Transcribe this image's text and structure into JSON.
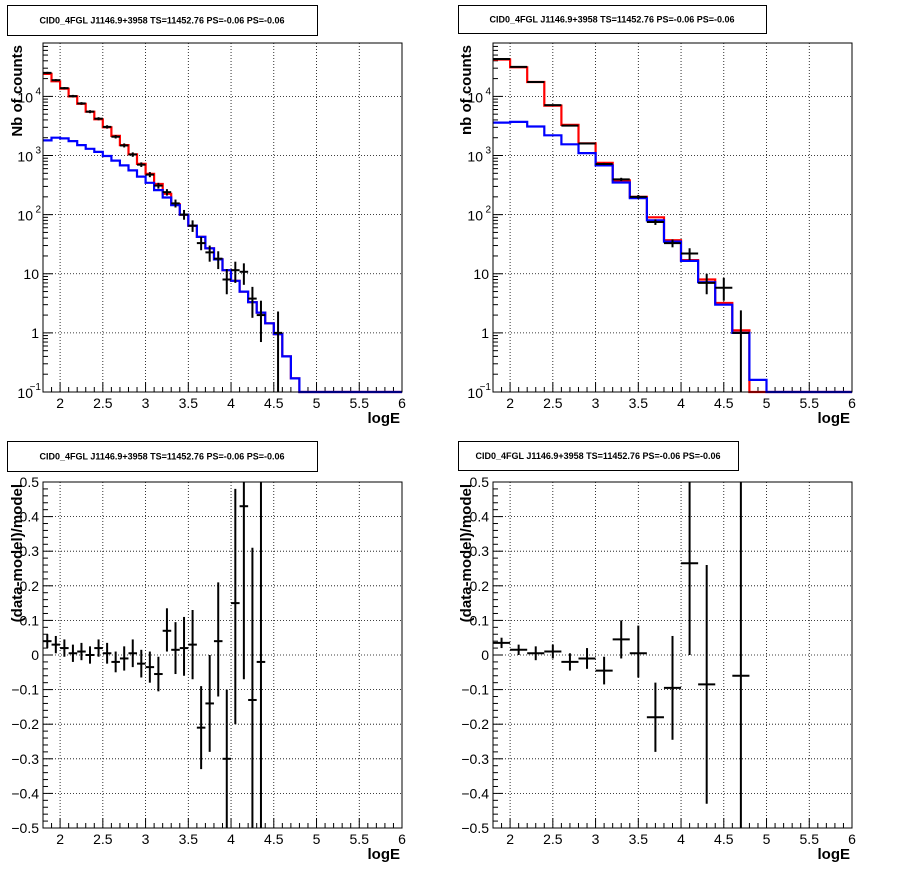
{
  "colors": {
    "model_total": "#ff0000",
    "model_source": "#0000ff",
    "data": "#000000",
    "grid": "#000000"
  },
  "chart_data": [
    {
      "type": "step-histogram",
      "panel": "top-left",
      "title": "CID0_4FGL J1146.9+3958 TS=11452.76 PS=-0.06 PS=-0.06",
      "xlabel": "logE",
      "ylabel": "Nb of counts",
      "xlim": [
        1.8,
        6.0
      ],
      "ylim": [
        0.1,
        80000
      ],
      "yscale": "log",
      "grid": true,
      "xticks": [
        {
          "v": 2,
          "label": "2"
        },
        {
          "v": 2.5,
          "label": "2.5"
        },
        {
          "v": 3,
          "label": "3"
        },
        {
          "v": 3.5,
          "label": "3.5"
        },
        {
          "v": 4,
          "label": "4"
        },
        {
          "v": 4.5,
          "label": "4.5"
        },
        {
          "v": 5,
          "label": "5"
        },
        {
          "v": 5.5,
          "label": "5.5"
        },
        {
          "v": 6,
          "label": "6"
        }
      ],
      "yticks": [
        {
          "v": 0.1,
          "label": "10",
          "sup": "−1"
        },
        {
          "v": 1,
          "label": "1"
        },
        {
          "v": 10,
          "label": "10"
        },
        {
          "v": 100,
          "label": "10",
          "sup": "2"
        },
        {
          "v": 1000,
          "label": "10",
          "sup": "3"
        },
        {
          "v": 10000,
          "label": "10",
          "sup": "4"
        }
      ],
      "bin_edges": [
        1.8,
        1.9,
        2.0,
        2.1,
        2.2,
        2.3,
        2.4,
        2.5,
        2.6,
        2.7,
        2.8,
        2.9,
        3.0,
        3.1,
        3.2,
        3.3,
        3.4,
        3.5,
        3.6,
        3.7,
        3.8,
        3.9,
        4.0,
        4.1,
        4.2,
        4.3,
        4.4,
        4.5,
        4.6,
        4.7,
        4.8,
        4.9,
        5.0,
        5.1,
        5.2,
        5.3,
        5.4,
        5.5,
        5.6,
        5.7,
        5.8,
        5.9,
        6.0
      ],
      "series": [
        {
          "kind": "model_total",
          "values": [
            24000,
            18000,
            13500,
            10000,
            7500,
            5500,
            4100,
            3000,
            2150,
            1500,
            1050,
            720,
            490,
            330,
            225,
            150,
            100,
            65,
            42,
            27,
            17.5,
            11.5,
            7.6,
            5.0,
            3.3,
            2.2,
            1.45,
            0.95,
            0.4,
            0.17,
            0.1,
            0.1,
            0.1,
            0.1,
            0.1,
            0.1,
            0.1,
            0.1,
            0.1,
            0.1,
            0.1,
            0.1
          ]
        },
        {
          "kind": "model_source",
          "values": [
            1800,
            2000,
            1950,
            1750,
            1500,
            1300,
            1150,
            980,
            820,
            680,
            560,
            440,
            345,
            260,
            195,
            145,
            100,
            65,
            42,
            27,
            17.5,
            11.5,
            7.6,
            5.0,
            3.3,
            2.2,
            1.45,
            0.95,
            0.4,
            0.17,
            0.1,
            0.1,
            0.1,
            0.1,
            0.1,
            0.1,
            0.1,
            0.1,
            0.1,
            0.1,
            0.1,
            0.1
          ]
        }
      ],
      "data_points": [
        {
          "x": 1.85,
          "y": 25000,
          "ylo": 24000,
          "yhi": 26000
        },
        {
          "x": 1.95,
          "y": 18800,
          "ylo": 18000,
          "yhi": 19600
        },
        {
          "x": 2.05,
          "y": 13800,
          "ylo": 13200,
          "yhi": 14400
        },
        {
          "x": 2.15,
          "y": 10100,
          "ylo": 9600,
          "yhi": 10600
        },
        {
          "x": 2.25,
          "y": 7600,
          "ylo": 7200,
          "yhi": 8000
        },
        {
          "x": 2.35,
          "y": 5520,
          "ylo": 5200,
          "yhi": 5850
        },
        {
          "x": 2.45,
          "y": 4200,
          "ylo": 3950,
          "yhi": 4450
        },
        {
          "x": 2.55,
          "y": 3050,
          "ylo": 2850,
          "yhi": 3250
        },
        {
          "x": 2.65,
          "y": 2080,
          "ylo": 1940,
          "yhi": 2220
        },
        {
          "x": 2.75,
          "y": 1480,
          "ylo": 1370,
          "yhi": 1600
        },
        {
          "x": 2.85,
          "y": 1040,
          "ylo": 950,
          "yhi": 1130
        },
        {
          "x": 2.95,
          "y": 700,
          "ylo": 640,
          "yhi": 765
        },
        {
          "x": 3.05,
          "y": 475,
          "ylo": 430,
          "yhi": 525
        },
        {
          "x": 3.15,
          "y": 310,
          "ylo": 275,
          "yhi": 345
        },
        {
          "x": 3.25,
          "y": 240,
          "ylo": 210,
          "yhi": 270
        },
        {
          "x": 3.35,
          "y": 155,
          "ylo": 132,
          "yhi": 180
        },
        {
          "x": 3.45,
          "y": 100,
          "ylo": 82,
          "yhi": 120
        },
        {
          "x": 3.55,
          "y": 65,
          "ylo": 51,
          "yhi": 80
        },
        {
          "x": 3.65,
          "y": 33,
          "ylo": 25,
          "yhi": 42
        },
        {
          "x": 3.75,
          "y": 23,
          "ylo": 16,
          "yhi": 30
        },
        {
          "x": 3.85,
          "y": 18,
          "ylo": 12,
          "yhi": 24
        },
        {
          "x": 3.95,
          "y": 8,
          "ylo": 4.5,
          "yhi": 12
        },
        {
          "x": 4.05,
          "y": 11.5,
          "ylo": 7,
          "yhi": 16
        },
        {
          "x": 4.15,
          "y": 10.8,
          "ylo": 6.5,
          "yhi": 15
        },
        {
          "x": 4.25,
          "y": 3.8,
          "ylo": 1.8,
          "yhi": 6
        },
        {
          "x": 4.35,
          "y": 2.0,
          "ylo": 0.7,
          "yhi": 3.5
        },
        {
          "x": 4.55,
          "y": 1.0,
          "ylo": 0.1,
          "yhi": 2.3
        }
      ]
    },
    {
      "type": "step-histogram",
      "panel": "top-right",
      "title": "CID0_4FGL J1146.9+3958 TS=11452.76 PS=-0.06 PS=-0.06",
      "xlabel": "logE",
      "ylabel": "nb of counts",
      "xlim": [
        1.8,
        6.0
      ],
      "ylim": [
        0.1,
        80000
      ],
      "yscale": "log",
      "grid": true,
      "xticks": [
        {
          "v": 2,
          "label": "2"
        },
        {
          "v": 2.5,
          "label": "2.5"
        },
        {
          "v": 3,
          "label": "3"
        },
        {
          "v": 3.5,
          "label": "3.5"
        },
        {
          "v": 4,
          "label": "4"
        },
        {
          "v": 4.5,
          "label": "4.5"
        },
        {
          "v": 5,
          "label": "5"
        },
        {
          "v": 5.5,
          "label": "5.5"
        },
        {
          "v": 6,
          "label": "6"
        }
      ],
      "yticks": [
        {
          "v": 0.1,
          "label": "10",
          "sup": "−1"
        },
        {
          "v": 1,
          "label": "1"
        },
        {
          "v": 10,
          "label": "10"
        },
        {
          "v": 100,
          "label": "10",
          "sup": "2"
        },
        {
          "v": 1000,
          "label": "10",
          "sup": "3"
        },
        {
          "v": 10000,
          "label": "10",
          "sup": "4"
        }
      ],
      "bin_edges": [
        1.8,
        2.0,
        2.2,
        2.4,
        2.6,
        2.8,
        3.0,
        3.2,
        3.4,
        3.6,
        3.8,
        4.0,
        4.2,
        4.4,
        4.6,
        4.8,
        5.0,
        5.2,
        5.4,
        5.6,
        5.8,
        6.0
      ],
      "series": [
        {
          "kind": "model_total",
          "values": [
            42000,
            31000,
            17500,
            7000,
            3300,
            1600,
            750,
            380,
            200,
            90,
            37,
            17,
            8,
            3.2,
            1.1,
            0.1,
            0.1,
            0.1,
            0.1,
            0.1,
            0.1
          ]
        },
        {
          "kind": "model_source",
          "values": [
            3600,
            3700,
            3100,
            2200,
            1550,
            1100,
            680,
            350,
            190,
            80,
            35,
            16.5,
            7.2,
            3.0,
            1.0,
            0.16,
            0.1,
            0.1,
            0.1,
            0.1,
            0.1
          ]
        }
      ],
      "data_points": [
        {
          "x": 1.9,
          "y": 43000,
          "ylo": 42000,
          "yhi": 44000
        },
        {
          "x": 2.1,
          "y": 31500,
          "ylo": 31000,
          "yhi": 32000
        },
        {
          "x": 2.3,
          "y": 17500,
          "ylo": 17200,
          "yhi": 17800
        },
        {
          "x": 2.5,
          "y": 7100,
          "ylo": 6950,
          "yhi": 7250
        },
        {
          "x": 2.7,
          "y": 3200,
          "ylo": 3100,
          "yhi": 3300
        },
        {
          "x": 2.9,
          "y": 1600,
          "ylo": 1550,
          "yhi": 1650
        },
        {
          "x": 3.1,
          "y": 720,
          "ylo": 690,
          "yhi": 750
        },
        {
          "x": 3.3,
          "y": 395,
          "ylo": 370,
          "yhi": 420
        },
        {
          "x": 3.5,
          "y": 200,
          "ylo": 185,
          "yhi": 215
        },
        {
          "x": 3.7,
          "y": 75,
          "ylo": 67,
          "yhi": 83
        },
        {
          "x": 3.9,
          "y": 33,
          "ylo": 28,
          "yhi": 38
        },
        {
          "x": 4.1,
          "y": 22,
          "ylo": 17,
          "yhi": 27
        },
        {
          "x": 4.3,
          "y": 7,
          "ylo": 4.5,
          "yhi": 10
        },
        {
          "x": 4.5,
          "y": 5.8,
          "ylo": 3.5,
          "yhi": 8.5
        },
        {
          "x": 4.7,
          "y": 1.0,
          "ylo": 0.1,
          "yhi": 2.4
        }
      ]
    },
    {
      "type": "scatter-errorbars",
      "panel": "bottom-left",
      "title": "CID0_4FGL J1146.9+3958 TS=11452.76 PS=-0.06 PS=-0.06",
      "xlabel": "logE",
      "ylabel": "(data-model)/model",
      "xlim": [
        1.8,
        6.0
      ],
      "ylim": [
        -0.5,
        0.5
      ],
      "yscale": "linear",
      "grid": true,
      "xticks": [
        {
          "v": 2,
          "label": "2"
        },
        {
          "v": 2.5,
          "label": "2.5"
        },
        {
          "v": 3,
          "label": "3"
        },
        {
          "v": 3.5,
          "label": "3.5"
        },
        {
          "v": 4,
          "label": "4"
        },
        {
          "v": 4.5,
          "label": "4.5"
        },
        {
          "v": 5,
          "label": "5"
        },
        {
          "v": 5.5,
          "label": "5.5"
        },
        {
          "v": 6,
          "label": "6"
        }
      ],
      "yticks": [
        {
          "v": -0.5,
          "label": "−0.5"
        },
        {
          "v": -0.4,
          "label": "−0.4"
        },
        {
          "v": -0.3,
          "label": "−0.3"
        },
        {
          "v": -0.2,
          "label": "−0.2"
        },
        {
          "v": -0.1,
          "label": "−0.1"
        },
        {
          "v": 0,
          "label": "0"
        },
        {
          "v": 0.1,
          "label": "0.1"
        },
        {
          "v": 0.2,
          "label": "0.2"
        },
        {
          "v": 0.3,
          "label": "0.3"
        },
        {
          "v": 0.4,
          "label": "0.4"
        },
        {
          "v": 0.5,
          "label": "0.5"
        }
      ],
      "data_points": [
        {
          "x": 1.85,
          "y": 0.04,
          "ylo": 0.02,
          "yhi": 0.06
        },
        {
          "x": 1.95,
          "y": 0.03,
          "ylo": 0.005,
          "yhi": 0.055
        },
        {
          "x": 2.05,
          "y": 0.02,
          "ylo": -0.005,
          "yhi": 0.045
        },
        {
          "x": 2.15,
          "y": 0.005,
          "ylo": -0.02,
          "yhi": 0.03
        },
        {
          "x": 2.25,
          "y": 0.01,
          "ylo": -0.015,
          "yhi": 0.035
        },
        {
          "x": 2.35,
          "y": 0.0,
          "ylo": -0.025,
          "yhi": 0.025
        },
        {
          "x": 2.45,
          "y": 0.02,
          "ylo": -0.005,
          "yhi": 0.045
        },
        {
          "x": 2.55,
          "y": 0.005,
          "ylo": -0.025,
          "yhi": 0.035
        },
        {
          "x": 2.65,
          "y": -0.02,
          "ylo": -0.05,
          "yhi": 0.01
        },
        {
          "x": 2.75,
          "y": -0.01,
          "ylo": -0.045,
          "yhi": 0.025
        },
        {
          "x": 2.85,
          "y": 0.005,
          "ylo": -0.035,
          "yhi": 0.045
        },
        {
          "x": 2.95,
          "y": -0.025,
          "ylo": -0.065,
          "yhi": 0.015
        },
        {
          "x": 3.05,
          "y": -0.035,
          "ylo": -0.08,
          "yhi": 0.01
        },
        {
          "x": 3.15,
          "y": -0.055,
          "ylo": -0.105,
          "yhi": -0.005
        },
        {
          "x": 3.25,
          "y": 0.07,
          "ylo": 0.01,
          "yhi": 0.135
        },
        {
          "x": 3.35,
          "y": 0.015,
          "ylo": -0.055,
          "yhi": 0.095
        },
        {
          "x": 3.45,
          "y": 0.02,
          "ylo": -0.06,
          "yhi": 0.11
        },
        {
          "x": 3.55,
          "y": 0.03,
          "ylo": -0.07,
          "yhi": 0.13
        },
        {
          "x": 3.65,
          "y": -0.21,
          "ylo": -0.33,
          "yhi": -0.09
        },
        {
          "x": 3.75,
          "y": -0.14,
          "ylo": -0.28,
          "yhi": 0.0
        },
        {
          "x": 3.85,
          "y": 0.04,
          "ylo": -0.12,
          "yhi": 0.21
        },
        {
          "x": 3.95,
          "y": -0.3,
          "ylo": -0.5,
          "yhi": -0.1
        },
        {
          "x": 4.05,
          "y": 0.15,
          "ylo": -0.2,
          "yhi": 0.48
        },
        {
          "x": 4.15,
          "y": 0.43,
          "ylo": -0.07,
          "yhi": 0.5
        },
        {
          "x": 4.25,
          "y": -0.13,
          "ylo": -0.5,
          "yhi": 0.31
        },
        {
          "x": 4.35,
          "y": -0.02,
          "ylo": -0.5,
          "yhi": 0.5
        }
      ]
    },
    {
      "type": "scatter-errorbars",
      "panel": "bottom-right",
      "title": "CID0_4FGL J1146.9+3958 TS=11452.76 PS=-0.06 PS=-0.06",
      "xlabel": "logE",
      "ylabel": "(data-model)/model",
      "xlim": [
        1.8,
        6.0
      ],
      "ylim": [
        -0.5,
        0.5
      ],
      "yscale": "linear",
      "grid": true,
      "xticks": [
        {
          "v": 2,
          "label": "2"
        },
        {
          "v": 2.5,
          "label": "2.5"
        },
        {
          "v": 3,
          "label": "3"
        },
        {
          "v": 3.5,
          "label": "3.5"
        },
        {
          "v": 4,
          "label": "4"
        },
        {
          "v": 4.5,
          "label": "4.5"
        },
        {
          "v": 5,
          "label": "5"
        },
        {
          "v": 5.5,
          "label": "5.5"
        },
        {
          "v": 6,
          "label": "6"
        }
      ],
      "yticks": [
        {
          "v": -0.5,
          "label": "−0.5"
        },
        {
          "v": -0.4,
          "label": "−0.4"
        },
        {
          "v": -0.3,
          "label": "−0.3"
        },
        {
          "v": -0.2,
          "label": "−0.2"
        },
        {
          "v": -0.1,
          "label": "−0.1"
        },
        {
          "v": 0,
          "label": "0"
        },
        {
          "v": 0.1,
          "label": "0.1"
        },
        {
          "v": 0.2,
          "label": "0.2"
        },
        {
          "v": 0.3,
          "label": "0.3"
        },
        {
          "v": 0.4,
          "label": "0.4"
        },
        {
          "v": 0.5,
          "label": "0.5"
        }
      ],
      "data_points": [
        {
          "x": 1.9,
          "y": 0.035,
          "ylo": 0.02,
          "yhi": 0.05
        },
        {
          "x": 2.1,
          "y": 0.015,
          "ylo": 0.0,
          "yhi": 0.03
        },
        {
          "x": 2.3,
          "y": 0.005,
          "ylo": -0.015,
          "yhi": 0.025
        },
        {
          "x": 2.5,
          "y": 0.01,
          "ylo": -0.01,
          "yhi": 0.03
        },
        {
          "x": 2.7,
          "y": -0.02,
          "ylo": -0.045,
          "yhi": 0.005
        },
        {
          "x": 2.9,
          "y": -0.01,
          "ylo": -0.04,
          "yhi": 0.02
        },
        {
          "x": 3.1,
          "y": -0.045,
          "ylo": -0.085,
          "yhi": -0.005
        },
        {
          "x": 3.3,
          "y": 0.045,
          "ylo": -0.01,
          "yhi": 0.1
        },
        {
          "x": 3.5,
          "y": 0.005,
          "ylo": -0.065,
          "yhi": 0.085
        },
        {
          "x": 3.7,
          "y": -0.18,
          "ylo": -0.28,
          "yhi": -0.08
        },
        {
          "x": 3.9,
          "y": -0.095,
          "ylo": -0.245,
          "yhi": 0.055
        },
        {
          "x": 4.1,
          "y": 0.265,
          "ylo": 0.0,
          "yhi": 0.5
        },
        {
          "x": 4.3,
          "y": -0.085,
          "ylo": -0.43,
          "yhi": 0.26
        },
        {
          "x": 4.7,
          "y": -0.06,
          "ylo": -0.5,
          "yhi": 0.5
        }
      ]
    }
  ]
}
